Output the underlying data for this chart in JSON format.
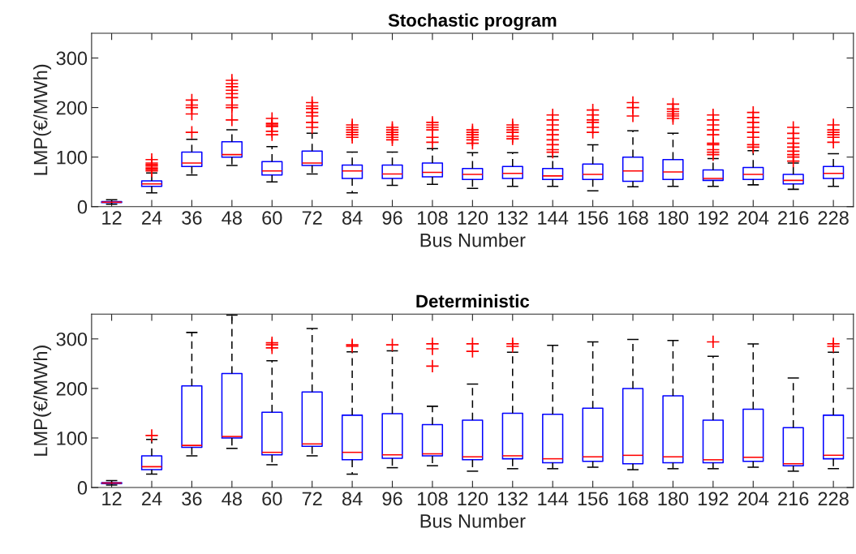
{
  "chart_data": [
    {
      "type": "box",
      "title": "Stochastic program",
      "xlabel": "Bus Number",
      "ylabel": "LMP(€/MWh)",
      "categories": [
        "12",
        "24",
        "36",
        "48",
        "60",
        "72",
        "84",
        "96",
        "108",
        "120",
        "132",
        "144",
        "156",
        "168",
        "180",
        "192",
        "204",
        "216",
        "228"
      ],
      "ylim": [
        0,
        350
      ],
      "yticks": [
        0,
        100,
        200,
        300
      ],
      "grid": false,
      "line_style": "dashed",
      "marker": "cross",
      "series": [
        {
          "color": "#0000ff",
          "boxes": [
            {
              "low": 5,
              "q1": 8,
              "median": 9,
              "q3": 10,
              "high": 14
            },
            {
              "low": 28,
              "q1": 41,
              "median": 46,
              "q3": 52,
              "high": 68,
              "outliers": [
                72,
                75,
                78,
                82,
                85,
                88,
                95
              ]
            },
            {
              "low": 64,
              "q1": 81,
              "median": 88,
              "q3": 110,
              "high": 136,
              "outliers": [
                150,
                187,
                200,
                205,
                215
              ]
            },
            {
              "low": 83,
              "q1": 100,
              "median": 105,
              "q3": 131,
              "high": 155,
              "outliers": [
                175,
                200,
                205,
                220,
                228,
                235,
                242,
                248,
                255
              ]
            },
            {
              "low": 50,
              "q1": 64,
              "median": 72,
              "q3": 91,
              "high": 121,
              "outliers": [
                145,
                152,
                162,
                165,
                168,
                178
              ]
            },
            {
              "low": 66,
              "q1": 83,
              "median": 88,
              "q3": 112,
              "high": 148,
              "outliers": [
                160,
                170,
                183,
                190,
                198,
                203,
                210
              ]
            },
            {
              "low": 28,
              "q1": 57,
              "median": 72,
              "q3": 84,
              "high": 110,
              "outliers": [
                140,
                145,
                150,
                155,
                160,
                165
              ]
            },
            {
              "low": 43,
              "q1": 57,
              "median": 66,
              "q3": 84,
              "high": 110,
              "outliers": [
                135,
                140,
                145,
                150,
                155,
                160
              ]
            },
            {
              "low": 45,
              "q1": 60,
              "median": 69,
              "q3": 88,
              "high": 117,
              "outliers": [
                130,
                140,
                155,
                160,
                165,
                170
              ]
            },
            {
              "low": 37,
              "q1": 55,
              "median": 65,
              "q3": 77,
              "high": 109,
              "outliers": [
                128,
                135,
                140,
                145,
                150,
                155
              ]
            },
            {
              "low": 41,
              "q1": 57,
              "median": 67,
              "q3": 81,
              "high": 109,
              "outliers": [
                137,
                142,
                150,
                155,
                160,
                165
              ]
            },
            {
              "low": 41,
              "q1": 55,
              "median": 62,
              "q3": 77,
              "high": 101,
              "outliers": [
                110,
                115,
                125,
                135,
                145,
                155,
                165,
                175,
                185
              ]
            },
            {
              "low": 32,
              "q1": 55,
              "median": 65,
              "q3": 86,
              "high": 125,
              "outliers": [
                150,
                160,
                170,
                175,
                185,
                195
              ]
            },
            {
              "low": 40,
              "q1": 51,
              "median": 72,
              "q3": 100,
              "high": 153,
              "outliers": [
                183,
                200,
                210
              ]
            },
            {
              "low": 41,
              "q1": 55,
              "median": 70,
              "q3": 95,
              "high": 148,
              "outliers": [
                178,
                183,
                187,
                192,
                197,
                207
              ]
            },
            {
              "low": 41,
              "q1": 53,
              "median": 57,
              "q3": 74,
              "high": 97,
              "outliers": [
                105,
                110,
                115,
                125,
                128,
                145,
                155,
                165,
                175,
                185
              ]
            },
            {
              "low": 44,
              "q1": 55,
              "median": 65,
              "q3": 79,
              "high": 113,
              "outliers": [
                120,
                125,
                140,
                150,
                160,
                170,
                180,
                190
              ]
            },
            {
              "low": 35,
              "q1": 46,
              "median": 53,
              "q3": 65,
              "high": 88,
              "outliers": [
                92,
                100,
                105,
                112,
                120,
                128,
                138,
                148,
                160
              ]
            },
            {
              "low": 41,
              "q1": 57,
              "median": 67,
              "q3": 81,
              "high": 107,
              "outliers": [
                130,
                140,
                145,
                150,
                155,
                165
              ]
            }
          ]
        }
      ]
    },
    {
      "type": "box",
      "title": "Deterministic",
      "xlabel": "Bus Number",
      "ylabel": "LMP(€/MWh)",
      "categories": [
        "12",
        "24",
        "36",
        "48",
        "60",
        "72",
        "84",
        "96",
        "108",
        "120",
        "132",
        "144",
        "156",
        "168",
        "180",
        "192",
        "204",
        "216",
        "228"
      ],
      "ylim": [
        0,
        350
      ],
      "yticks": [
        0,
        100,
        200,
        300
      ],
      "grid": false,
      "line_style": "dashed",
      "marker": "cross",
      "series": [
        {
          "color": "#0000ff",
          "boxes": [
            {
              "low": 5,
              "q1": 8,
              "median": 9,
              "q3": 10,
              "high": 14
            },
            {
              "low": 27,
              "q1": 36,
              "median": 42,
              "q3": 64,
              "high": 97,
              "outliers": [
                105
              ]
            },
            {
              "low": 64,
              "q1": 81,
              "median": 85,
              "q3": 205,
              "high": 313
            },
            {
              "low": 79,
              "q1": 100,
              "median": 103,
              "q3": 230,
              "high": 348
            },
            {
              "low": 46,
              "q1": 66,
              "median": 71,
              "q3": 152,
              "high": 256,
              "outliers": [
                282,
                288,
                292
              ]
            },
            {
              "low": 64,
              "q1": 83,
              "median": 88,
              "q3": 193,
              "high": 321
            },
            {
              "low": 27,
              "q1": 56,
              "median": 71,
              "q3": 146,
              "high": 274,
              "outliers": [
                285,
                288
              ]
            },
            {
              "low": 40,
              "q1": 59,
              "median": 66,
              "q3": 149,
              "high": 276,
              "outliers": [
                288
              ]
            },
            {
              "low": 44,
              "q1": 64,
              "median": 68,
              "q3": 127,
              "high": 164,
              "outliers": [
                245,
                280,
                290
              ]
            },
            {
              "low": 33,
              "q1": 56,
              "median": 62,
              "q3": 136,
              "high": 209,
              "outliers": [
                275,
                290
              ]
            },
            {
              "low": 38,
              "q1": 58,
              "median": 64,
              "q3": 150,
              "high": 273,
              "outliers": [
                285,
                290
              ]
            },
            {
              "low": 38,
              "q1": 50,
              "median": 58,
              "q3": 148,
              "high": 287
            },
            {
              "low": 41,
              "q1": 53,
              "median": 62,
              "q3": 160,
              "high": 294
            },
            {
              "low": 36,
              "q1": 48,
              "median": 65,
              "q3": 200,
              "high": 299
            },
            {
              "low": 38,
              "q1": 50,
              "median": 62,
              "q3": 185,
              "high": 297
            },
            {
              "low": 38,
              "q1": 50,
              "median": 56,
              "q3": 136,
              "high": 265,
              "outliers": [
                294
              ]
            },
            {
              "low": 41,
              "q1": 53,
              "median": 61,
              "q3": 158,
              "high": 290
            },
            {
              "low": 33,
              "q1": 44,
              "median": 48,
              "q3": 121,
              "high": 221
            },
            {
              "low": 38,
              "q1": 58,
              "median": 65,
              "q3": 146,
              "high": 273,
              "outliers": [
                285,
                290
              ]
            }
          ]
        }
      ]
    }
  ]
}
